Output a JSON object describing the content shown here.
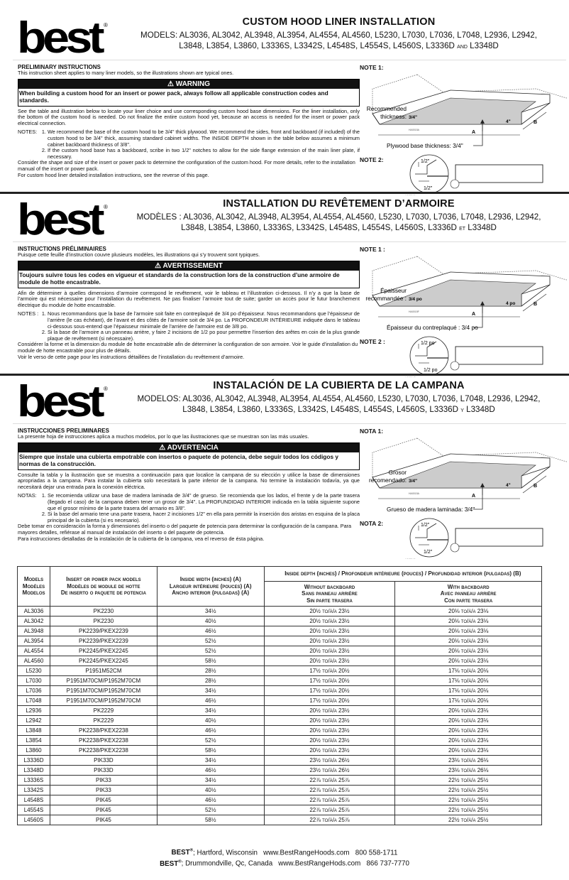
{
  "logo": {
    "text": "best",
    "mark": "®"
  },
  "sections": [
    {
      "title": "CUSTOM HOOD LINER INSTALLATION",
      "models_line1": "MODELS: AL3036, AL3042, AL3948, AL3954, AL4554, AL4560, L5230, L7030, L7036, L7048, L2936, L2942,",
      "models_line2": "L3848, L3854, L3860, L3336S, L3342S, L4548S, L4554S, L4560S, L3336D",
      "connector": "and",
      "last_model": "L3348D",
      "prelim_heading": "PRELIMINARY INSTRUCTIONS",
      "prelim_text": "This instruction sheet applies to many liner models, so the illustrations shown are typical ones.",
      "warning_label": "WARNING",
      "warning_text": "When building a custom hood for an insert or power pack, always follow all applicable construction codes and standards.",
      "intro": "See the table and illustration below to locate your liner choice and use corresponding custom hood base dimensions. For the liner installation, only the bottom of the custom hood is needed. Do not finalize the entire custom hood yet, because an access is needed for the insert or power pack electrical connection.",
      "notes_label": "NOTES:",
      "notes": [
        "We recommend the base of the custom hood to be 3/4\" thick plywood. We recommend the sides, front and backboard (if included) of the custom hood to be 3/4\" thick, assuming standard cabinet widths. The INSIDE DEPTH shown in the table below assumes a minimum cabinet backboard thickness of 3/8\".",
        "If the custom hood base has a backboard, scribe in two 1/2\" notches to allow for the side flange extension of the main liner plate, if necessary."
      ],
      "closing": [
        "Consider the shape and size of the insert or power pack to determine the configuration of the custom hood. For more details, refer to the installation manual of the insert or power pack.",
        "For custom hood liner detailed installation instructions, see the reverse of this page."
      ],
      "note1_label": "NOTE 1:",
      "note1": {
        "recommended_1": "Recommended",
        "recommended_2": "thickness:",
        "thickness": "3/4\"",
        "a": "A",
        "b": "B",
        "four": "4\"",
        "base": "Plywood base thickness: 3/4\"",
        "code": "HA0015A"
      },
      "note2_label": "NOTE 2:",
      "note2": {
        "half_top": "1/2\"",
        "half_bottom": "1/2\"",
        "code": "HA0014A"
      }
    },
    {
      "title": "INSTALLATION DU REVÊTEMENT D’ARMOIRE",
      "models_line1": "MODÈLES : AL3036, AL3042, AL3948, AL3954, AL4554, AL4560, L5230, L7030, L7036, L7048, L2936, L2942,",
      "models_line2": "L3848, L3854, L3860, L3336S, L3342S, L4548S, L4554S, L4560S, L3336D",
      "connector": "et",
      "last_model": "L3348D",
      "prelim_heading": "INSTRUCTIONS PRÉLIMINAIRES",
      "prelim_text": "Puisque cette feuille d’instruction couvre plusieurs modèles, les illustrations qui s’y trouvent sont typiques.",
      "warning_label": "AVERTISSEMENT",
      "warning_text": "Toujours suivre tous les codes en vigueur et standards de la construction lors de la construction d’une armoire de module de hotte encastrable.",
      "intro": "Afin de déterminer à quelles dimensions d’armoire correspond le revêtement, voir le tableau et l’illustration ci-dessous. Il n’y a que la base de l’armoire qui est nécessaire pour l’installation du revêtement. Ne pas finaliser l’armoire tout de suite; garder un accès pour le futur branchement électrique du module de hotte encastrable.",
      "notes_label": "NOTES :",
      "notes": [
        "Nous recommandons que la base de l’armoire soit faite en contreplaqué de 3/4 po d’épaisseur. Nous recommandons que l’épaisseur de l’arrière (le cas échéant), de l’avant et des côtés de l’armoire soit de 3/4 po. La PROFONDEUR INTÉRIEURE indiquée dans le tableau ci-dessous sous-entend que l’épaisseur minimale de l’arrière de l’armoire est de 3/8 po.",
        "Si la base de l’armoire a un panneau arrière, y faire 2 incisions de 1/2 po pour permettre l’insertion des arêtes en coin de la plus grande plaque de revêtement (si nécessaire)."
      ],
      "closing": [
        "Considérer la forme et la dimension du module de hotte encastrable afin de déterminer la configuration de son armoire. Voir le guide d’installation du module de hotte encastrable pour plus de détails.",
        "Voir le verso de cette page pour les instructions détaillées de l’installation du revêtement d’armoire."
      ],
      "note1_label": "NOTE 1 :",
      "note1": {
        "recommended_1": "Épaisseur",
        "recommended_2": "recommandée :",
        "thickness": "3/4 po",
        "a": "A",
        "b": "B",
        "four": "4 po",
        "base": "Épaisseur du contreplaqué : 3/4 po",
        "code": "HA0015F"
      },
      "note2_label": "NOTE 2 :",
      "note2": {
        "half_top": "1/2 po",
        "half_bottom": "1/2 po",
        "code": "HA0014F"
      }
    },
    {
      "title": "INSTALACIÓN DE LA CUBIERTA DE LA CAMPANA",
      "models_line1": "MODELOS: AL3036, AL3042, AL3948, AL3954, AL4554, AL4560, L5230, L7030, L7036, L7048, L2936, L2942,",
      "models_line2": "L3848, L3854, L3860, L3336S, L3342S, L4548S, L4554S, L4560S, L3336D",
      "connector": "y",
      "last_model": "L3348D",
      "prelim_heading": "INSTRUCCIONES PRELIMINARES",
      "prelim_text": "La presente hoja de instrucciones aplica a muchos modelos, por lo que las ilustraciones que se muestran son las más usuales.",
      "warning_label": "ADVERTENCIA",
      "warning_text": "Siempre que instale una cubierta empotrable con insertos o paquete de potencia, debe seguir todos los códigos y normas de la construcción.",
      "intro": "Consulte la tabla y la ilustración que se muestra a continuación para que localice la campana de su elección y utilice la base de dimensiones apropriadas a la campana. Para instalar la cubierta solo necesitará la parte inferior de la campana. No termine la instalación todavía, ya que necesitará dejar una entrada para la conexión eléctrica.",
      "notes_label": "NOTAS:",
      "notes": [
        "Se recomienda utilizar una base de madera laminada de 3/4\" de grueso. Se recomienda que los lados, el frente y de la parte trasera (llegado el caso) de la campana deben tener un grosor de 3/4\". La PROFUNDIDAD INTERIOR indicada en la tabla siguiente supone que el grosor mínimo de la parte trasera del armario es 3/8\".",
        "Si la base del armario tene una parte trasera, hacer 2 incisiones 1/2\" en ella para permitir la inserción dos aristas en esquina de la placa principal de la cubierta (si es necesario)."
      ],
      "closing": [
        "Debe tomar en consideración la forma y dimensiones del inserto o del paquete de potencia para determinar la configuración de la campana. Para mayores detalles, refiérase al manual de instalación del inserto o del paquete de potencia.",
        "Para instrucciones detalladas de la instalación de la cubierta de la campana, vea el reverso de ésta página."
      ],
      "note1_label": "NOTA 1:",
      "note1": {
        "recommended_1": "Grosor",
        "recommended_2": "recomendado:",
        "thickness": "3/4\"",
        "a": "A",
        "b": "B",
        "four": "4\"",
        "base": "Grueso de madera laminada: 3/4\"",
        "code": "HA0015A"
      },
      "note2_label": "NOTA 2:",
      "note2": {
        "half_top": "1/2\"",
        "half_bottom": "1/2\"",
        "code": "HA0014A"
      }
    }
  ],
  "table": {
    "headers": {
      "models": [
        "Models",
        "Modèles",
        "Modelos"
      ],
      "insert": [
        "Insert or power pack models",
        "Modèles de module de hotte",
        "De inserto o paquete de potencia"
      ],
      "width": [
        "Inside width (inches) (A)",
        "Largeur intérieure (pouces) (A)",
        "Ancho interior (pulgadas) (A)"
      ],
      "depth": "Inside depth (inches) / Profondeur intérieure (pouces) / Profundidad interior (pulgadas) (B)",
      "without": [
        "Without backboard",
        "Sans panneau arrière",
        "Sin parte trasera"
      ],
      "with": [
        "With backboard",
        "Avec panneau arrière",
        "Con parte trasera"
      ]
    },
    "rows": [
      [
        "AL3036",
        "PK2230",
        "34½",
        "20½ to/à/a 23½",
        "20⅛ to/à/a 23⅛"
      ],
      [
        "AL3042",
        "PK2230",
        "40½",
        "20½ to/à/a 23½",
        "20⅛ to/à/a 23⅛"
      ],
      [
        "AL3948",
        "PK2239/PKEX2239",
        "46½",
        "20½ to/à/a 23½",
        "20⅛ to/à/a 23⅛"
      ],
      [
        "AL3954",
        "PK2239/PKEX2239",
        "52½",
        "20½ to/à/a 23½",
        "20⅛ to/à/a 23⅛"
      ],
      [
        "AL4554",
        "PK2245/PKEX2245",
        "52½",
        "20½ to/à/a 23½",
        "20⅛ to/à/a 23⅛"
      ],
      [
        "AL4560",
        "PK2245/PKEX2245",
        "58½",
        "20½ to/à/a 23½",
        "20⅛ to/à/a 23⅛"
      ],
      [
        "L5230",
        "P1951M52CM",
        "28½",
        "17½ to/à/a 20½",
        "17⅛ to/à/a 20⅛"
      ],
      [
        "L7030",
        "P1951M70CM/P1952M70CM",
        "28½",
        "17½ to/à/a 20½",
        "17⅛ to/à/a 20⅛"
      ],
      [
        "L7036",
        "P1951M70CM/P1952M70CM",
        "34½",
        "17½ to/à/a 20½",
        "17⅛ to/à/a 20⅛"
      ],
      [
        "L7048",
        "P1951M70CM/P1952M70CM",
        "46½",
        "17½ to/à/a 20½",
        "17⅛ to/à/a 20⅛"
      ],
      [
        "L2936",
        "PK2229",
        "34½",
        "20½ to/à/a 23½",
        "20⅛ to/à/a 23⅛"
      ],
      [
        "L2942",
        "PK2229",
        "40½",
        "20½ to/à/a 23½",
        "20⅛ to/à/a 23⅛"
      ],
      [
        "L3848",
        "PK2238/PKEX2238",
        "46½",
        "20½ to/à/a 23½",
        "20⅛ to/à/a 23⅛"
      ],
      [
        "L3854",
        "PK2238/PKEX2238",
        "52½",
        "20½ to/à/a 23½",
        "20⅛ to/à/a 23⅛"
      ],
      [
        "L3860",
        "PK2238/PKEX2238",
        "58½",
        "20½ to/à/a 23½",
        "20⅛ to/à/a 23⅛"
      ],
      [
        "L3336D",
        "PIK33D",
        "34½",
        "23½ to/à/a 26½",
        "23⅛ to/à/a 26⅛"
      ],
      [
        "L3348D",
        "PIK33D",
        "46½",
        "23½ to/à/a 26½",
        "23⅛ to/à/a 26⅛"
      ],
      [
        "L3336S",
        "PIK33",
        "34½",
        "22⅞ to/à/a 25⅞",
        "22½ to/à/a 25½"
      ],
      [
        "L3342S",
        "PIK33",
        "40½",
        "22⅞ to/à/a 25⅞",
        "22½ to/à/a 25½"
      ],
      [
        "L4548S",
        "PIK45",
        "46½",
        "22⅞ to/à/a 25⅞",
        "22½ to/à/a 25½"
      ],
      [
        "L4554S",
        "PIK45",
        "52½",
        "22⅞ to/à/a 25⅞",
        "22½ to/à/a 25½"
      ],
      [
        "L4560S",
        "PIK45",
        "58½",
        "22⅞ to/à/a 25⅞",
        "22½ to/à/a 25½"
      ]
    ]
  },
  "footer": [
    {
      "brand": "BEST",
      "mark": "®",
      "text": "; Hartford, Wisconsin   www.BestRangeHoods.com   800 558-1711"
    },
    {
      "brand": "BEST",
      "mark": "®",
      "text": "; Drummondville, Qc, Canada   www.BestRangeHods.com   866 737-7770"
    }
  ]
}
